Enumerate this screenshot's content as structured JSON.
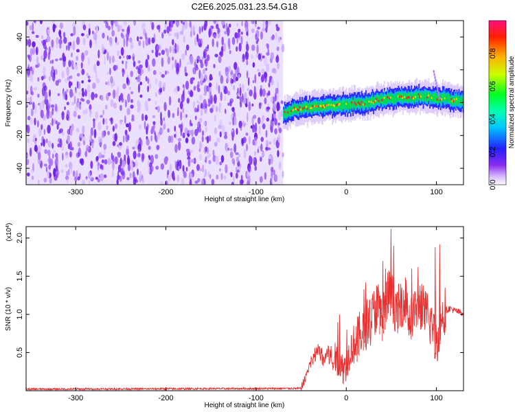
{
  "title": "C2E6.2025.031.23.54.G18",
  "chart_data": [
    {
      "type": "heatmap",
      "xlabel": "Height of straight line (km)",
      "ylabel": "Frequency (Hz)",
      "xlim": [
        -355,
        130
      ],
      "ylim": [
        -50,
        50
      ],
      "x_ticks": [
        -300,
        -200,
        -100,
        0,
        100
      ],
      "y_ticks": [
        -40,
        -20,
        0,
        20,
        40
      ],
      "noise_region_x": [
        -355,
        -70
      ],
      "signal_ridge": {
        "x": [
          -70,
          -60,
          -40,
          -20,
          0,
          20,
          40,
          60,
          80,
          100,
          110,
          130
        ],
        "frequency": [
          -7,
          -4,
          -3,
          -2,
          -1,
          0,
          2,
          3,
          4,
          3,
          2,
          1
        ]
      },
      "colorbar": {
        "label": "Normalized spectral amplitude",
        "range": [
          0,
          1
        ],
        "ticks": [
          0.0,
          0.2,
          0.4,
          0.6,
          0.8
        ]
      },
      "colors": {
        "noise": "#7a2cf0",
        "ridge_core": "#ff2020",
        "ridge_mid": "#00e040",
        "ridge_edge": "#2020ff"
      }
    },
    {
      "type": "line",
      "xlabel": "Height of straight line (km)",
      "ylabel": "SNR (10 * v/v)",
      "y_multiplier_label": "(x10",
      "y_multiplier_exp": "4",
      "xlim": [
        -355,
        130
      ],
      "ylim": [
        0,
        2.15
      ],
      "x_ticks": [
        -300,
        -200,
        -100,
        0,
        100
      ],
      "y_ticks": [
        0.5,
        1.0,
        1.5,
        2.0
      ],
      "series": [
        {
          "color": "#e83030",
          "x": [
            -355,
            -50,
            -45,
            -40,
            -35,
            -30,
            -25,
            -20,
            -15,
            -10,
            -5,
            0,
            5,
            10,
            15,
            20,
            25,
            30,
            35,
            40,
            45,
            50,
            55,
            60,
            65,
            70,
            75,
            80,
            85,
            90,
            95,
            100,
            105,
            110,
            115,
            120,
            125,
            130
          ],
          "y": [
            0.02,
            0.03,
            0.18,
            0.35,
            0.45,
            0.55,
            0.42,
            0.5,
            0.38,
            0.45,
            0.3,
            0.35,
            0.55,
            0.65,
            0.72,
            0.85,
            0.95,
            1.0,
            1.1,
            0.95,
            1.2,
            1.3,
            1.0,
            1.1,
            1.25,
            0.95,
            1.0,
            1.2,
            1.05,
            0.95,
            0.9,
            0.6,
            0.95,
            1.05,
            1.08,
            1.05,
            1.03,
            1.02
          ]
        }
      ],
      "peaks": [
        {
          "x": -10,
          "y": 0.9
        },
        {
          "x": -8,
          "y": 1.0
        },
        {
          "x": 0,
          "y": 0.8
        },
        {
          "x": 12,
          "y": 0.92
        },
        {
          "x": 19,
          "y": 1.33
        },
        {
          "x": 21,
          "y": 1.42
        },
        {
          "x": 33,
          "y": 1.38
        },
        {
          "x": 37,
          "y": 1.25
        },
        {
          "x": 40,
          "y": 1.7
        },
        {
          "x": 43,
          "y": 1.6
        },
        {
          "x": 49,
          "y": 2.12
        },
        {
          "x": 52,
          "y": 1.9
        },
        {
          "x": 61,
          "y": 1.35
        },
        {
          "x": 66,
          "y": 1.45
        },
        {
          "x": 72,
          "y": 1.6
        },
        {
          "x": 79,
          "y": 1.62
        },
        {
          "x": 83,
          "y": 1.4
        },
        {
          "x": 98,
          "y": 1.88
        },
        {
          "x": 103,
          "y": 1.92
        },
        {
          "x": 109,
          "y": 1.35
        }
      ]
    }
  ]
}
